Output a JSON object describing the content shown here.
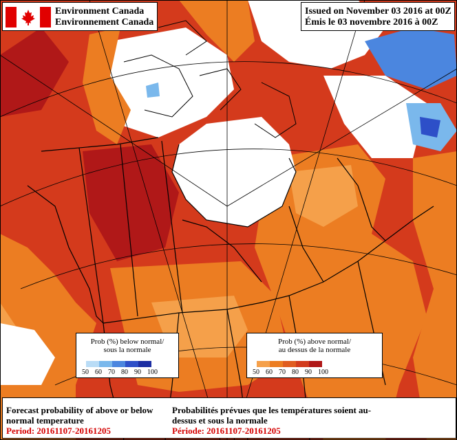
{
  "header": {
    "agency_en": "Environment Canada",
    "agency_fr": "Environnement Canada",
    "issued_en": "Issued on November 03 2016 at 00Z",
    "issued_fr": "Émis le 03 novembre 2016 à 00Z"
  },
  "legend_below": {
    "title_en": "Prob (%) below normal/",
    "title_fr": "sous la normale",
    "ticks": [
      "50",
      "60",
      "70",
      "80",
      "90",
      "100"
    ],
    "colors": [
      "#b9dcf6",
      "#7ab8ec",
      "#4b86df",
      "#2d4fc8",
      "#1c2ea3"
    ]
  },
  "legend_above": {
    "title_en": "Prob (%) above normal/",
    "title_fr": "au dessus de la normale",
    "ticks": [
      "50",
      "60",
      "70",
      "80",
      "90",
      "100"
    ],
    "colors": [
      "#f5a04a",
      "#ec7d22",
      "#e05d20",
      "#d23b1c",
      "#b01818"
    ]
  },
  "caption": {
    "title_en": "Forecast probability of above or below normal temperature",
    "period_en": "Period: 20161107-20161205",
    "title_fr": "Probabilités prévues que les températures soient au-dessus et sous la normale",
    "period_fr": "Période: 20161107-20161205"
  }
}
